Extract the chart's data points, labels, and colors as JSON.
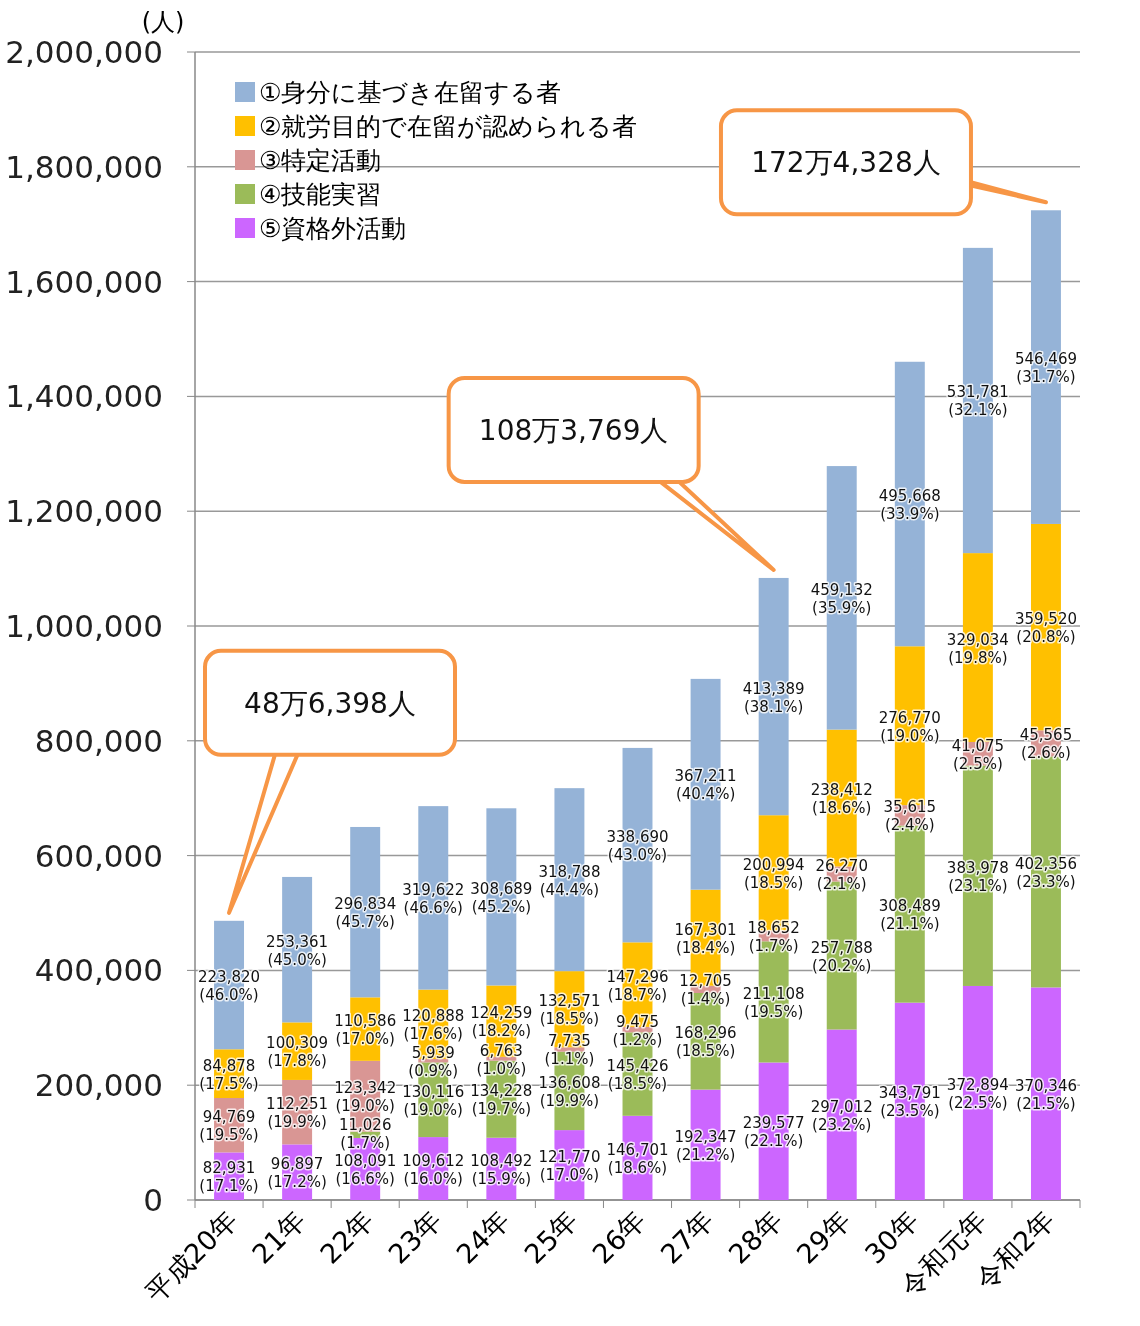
{
  "chart_data": {
    "type": "bar",
    "stacked": true,
    "ylabel": "(人)",
    "categories": [
      "平成20年",
      "21年",
      "22年",
      "23年",
      "24年",
      "25年",
      "26年",
      "27年",
      "28年",
      "29年",
      "30年",
      "令和元年",
      "令和2年"
    ],
    "ylim": [
      0,
      2000000
    ],
    "yticks": [
      {
        "value": 0,
        "label": "0"
      },
      {
        "value": 200000,
        "label": "200,000"
      },
      {
        "value": 400000,
        "label": "400,000"
      },
      {
        "value": 600000,
        "label": "600,000"
      },
      {
        "value": 800000,
        "label": "800,000"
      },
      {
        "value": 1000000,
        "label": "1,000,000"
      },
      {
        "value": 1200000,
        "label": "1,200,000"
      },
      {
        "value": 1400000,
        "label": "1,400,000"
      },
      {
        "value": 1600000,
        "label": "1,600,000"
      },
      {
        "value": 1800000,
        "label": "1,800,000"
      },
      {
        "value": 2000000,
        "label": "2,000,000"
      }
    ],
    "grid": "y",
    "legend": "top left",
    "series": [
      {
        "name": "⑤資格外活動",
        "color": "#cc66ff",
        "values": [
          82931,
          96897,
          108091,
          109612,
          108492,
          121770,
          146701,
          192347,
          239577,
          297012,
          343791,
          372894,
          370346
        ],
        "value_labels": [
          "82,931 (17.1%)",
          "96,897 (17.2%)",
          "108,091 (16.6%)",
          "109,612 (16.0%)",
          "108,492 (15.9%)",
          "121,770 (17.0%)",
          "146,701 (18.6%)",
          "192,347 (21.2%)",
          "239,577 (22.1%)",
          "297,012 (23.2%)",
          "343,791 (23.5%)",
          "372,894 (22.5%)",
          "370,346 (21.5%)"
        ]
      },
      {
        "name": "④技能実習",
        "color": "#9bbb59",
        "values": [
          null,
          null,
          11026,
          130116,
          134228,
          136608,
          145426,
          168296,
          211108,
          257788,
          308489,
          383978,
          402356
        ],
        "value_labels": [
          null,
          null,
          "11,026 (1.7%)",
          "130,116 (19.0%)",
          "134,228 (19.7%)",
          "136,608 (19.9%)",
          "145,426 (18.5%)",
          "168,296 (18.5%)",
          "211,108 (19.5%)",
          "257,788 (20.2%)",
          "308,489 (21.1%)",
          "383,978 (23.1%)",
          "402,356 (23.3%)"
        ]
      },
      {
        "name": "③特定活動",
        "color": "#d99694",
        "values": [
          94769,
          112251,
          123342,
          5939,
          6763,
          7735,
          9475,
          12705,
          18652,
          26270,
          35615,
          41075,
          45565
        ],
        "value_labels": [
          "94,769 (19.5%)",
          "112,251 (19.9%)",
          "123,342 (19.0%)",
          "5,939 (0.9%)",
          "6,763 (1.0%)",
          "7,735 (1.1%)",
          "9,475 (1.2%)",
          "12,705 (1.4%)",
          "18,652 (1.7%)",
          "26,270 (2.1%)",
          "35,615 (2.4%)",
          "41,075 (2.5%)",
          "45,565 (2.6%)"
        ]
      },
      {
        "name": "②就労目的で在留が認められる者",
        "color": "#ffc000",
        "values": [
          84878,
          100309,
          110586,
          120888,
          124259,
          132571,
          147296,
          167301,
          200994,
          238412,
          276770,
          329034,
          359520
        ],
        "value_labels": [
          "84,878 (17.5%)",
          "100,309 (17.8%)",
          "110,586 (17.0%)",
          "120,888 (17.6%)",
          "124,259 (18.2%)",
          "132,571 (18.5%)",
          "147,296 (18.7%)",
          "167,301 (18.4%)",
          "200,994 (18.5%)",
          "238,412 (18.6%)",
          "276,770 (19.0%)",
          "329,034 (19.8%)",
          "359,520 (20.8%)"
        ]
      },
      {
        "name": "①身分に基づき在留する者",
        "color": "#95b3d7",
        "values": [
          223820,
          253361,
          296834,
          319622,
          308689,
          318788,
          338690,
          367211,
          413389,
          459132,
          495668,
          531781,
          546469
        ],
        "value_labels": [
          "223,820 (46.0%)",
          "253,361 (45.0%)",
          "296,834 (45.7%)",
          "319,622 (46.6%)",
          "308,689 (45.2%)",
          "318,788 (44.4%)",
          "338,690 (43.0%)",
          "367,211 (40.4%)",
          "413,389 (38.1%)",
          "459,132 (35.9%)",
          "495,668 (33.9%)",
          "531,781 (32.1%)",
          "546,469 (31.7%)"
        ]
      }
    ],
    "annotations": [
      "48万6,398人",
      "108万3,769人",
      "172万4,328人"
    ]
  }
}
